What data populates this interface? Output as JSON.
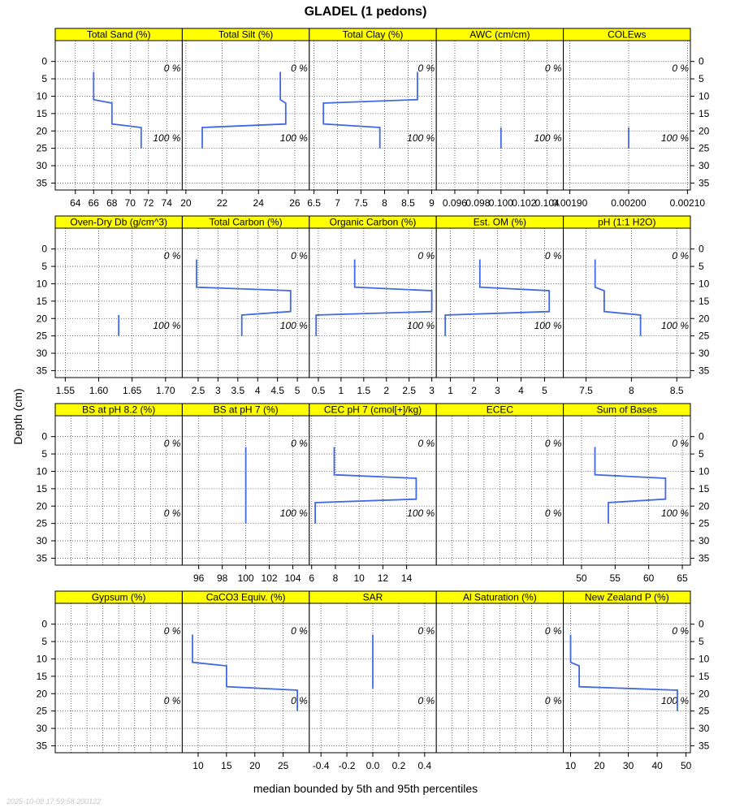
{
  "chart_data": {
    "type": "line",
    "title": "GLADEL (1 pedons)",
    "ylabel": "Depth (cm)",
    "xlabel": "median bounded by 5th and 95th percentiles",
    "timestamp": "2025-10-08 17:59:58.200122",
    "ylim": [
      37,
      -6
    ],
    "y_ticks": [
      0,
      5,
      10,
      15,
      20,
      25,
      30,
      35
    ],
    "grid": true,
    "strip_color": "#ffff00",
    "line_color": "#4169e1",
    "panels": [
      {
        "name": "Total Sand (%)",
        "xlim": [
          61.8,
          75.7
        ],
        "x_ticks": [
          64,
          66,
          68,
          70,
          72,
          74
        ],
        "x_axis": "bottom",
        "annotations": [
          {
            "text": "0 %",
            "depth": 2
          },
          {
            "text": "100 %",
            "depth": 22
          }
        ],
        "profile": [
          [
            66,
            3
          ],
          [
            66,
            11
          ],
          [
            68,
            12
          ],
          [
            68,
            18
          ],
          [
            71.2,
            19
          ],
          [
            71.2,
            25
          ]
        ]
      },
      {
        "name": "Total Silt (%)",
        "xlim": [
          19.8,
          26.8
        ],
        "x_ticks": [
          20,
          22,
          24,
          26
        ],
        "x_axis": "bottom",
        "annotations": [
          {
            "text": "0 %",
            "depth": 2
          },
          {
            "text": "100 %",
            "depth": 22
          }
        ],
        "profile": [
          [
            25.2,
            3
          ],
          [
            25.2,
            11
          ],
          [
            25.5,
            12
          ],
          [
            25.5,
            18
          ],
          [
            20.9,
            19
          ],
          [
            20.9,
            25
          ]
        ]
      },
      {
        "name": "Total Clay (%)",
        "xlim": [
          6.4,
          9.1
        ],
        "x_ticks": [
          6.5,
          7.0,
          7.5,
          8.0,
          8.5,
          9.0
        ],
        "x_axis": "bottom",
        "annotations": [
          {
            "text": "0 %",
            "depth": 2
          },
          {
            "text": "100 %",
            "depth": 22
          }
        ],
        "profile": [
          [
            8.7,
            3
          ],
          [
            8.7,
            11
          ],
          [
            6.7,
            12
          ],
          [
            6.7,
            18
          ],
          [
            7.9,
            19
          ],
          [
            7.9,
            25
          ]
        ]
      },
      {
        "name": "AWC (cm/cm)",
        "xlim": [
          0.0944,
          0.1054
        ],
        "x_ticks": [
          0.096,
          0.098,
          0.1,
          0.102,
          0.104
        ],
        "x_tick_labels": [
          "0.096",
          "0.098",
          "0.100",
          "0.102",
          "0.104"
        ],
        "x_axis": "bottom",
        "annotations": [
          {
            "text": "0 %",
            "depth": 2
          },
          {
            "text": "100 %",
            "depth": 22
          }
        ],
        "profile": [
          [
            0.1,
            19
          ],
          [
            0.1,
            25
          ]
        ]
      },
      {
        "name": "COLEws",
        "xlim": [
          0.001889,
          0.002105
        ],
        "x_ticks": [
          0.0019,
          0.002,
          0.0021
        ],
        "x_tick_labels": [
          "0.00190",
          "0.00200",
          "0.00210"
        ],
        "x_axis": "bottom",
        "annotations": [
          {
            "text": "0 %",
            "depth": 2
          },
          {
            "text": "100 %",
            "depth": 22
          }
        ],
        "profile": [
          [
            0.002,
            19
          ],
          [
            0.002,
            25
          ]
        ]
      },
      {
        "name": "Oven-Dry Db (g/cm^3)",
        "xlim": [
          1.535,
          1.725
        ],
        "x_ticks": [
          1.55,
          1.6,
          1.65,
          1.7
        ],
        "x_tick_labels": [
          "1.55",
          "1.60",
          "1.65",
          "1.70"
        ],
        "x_axis": "bottom",
        "annotations": [
          {
            "text": "0 %",
            "depth": 2
          },
          {
            "text": "100 %",
            "depth": 22
          }
        ],
        "profile": [
          [
            1.63,
            19
          ],
          [
            1.63,
            25
          ]
        ]
      },
      {
        "name": "Total Carbon (%)",
        "xlim": [
          2.1,
          5.3
        ],
        "x_ticks": [
          2.5,
          3.0,
          3.5,
          4.0,
          4.5,
          5.0
        ],
        "x_axis": "bottom",
        "annotations": [
          {
            "text": "0 %",
            "depth": 2
          },
          {
            "text": "100 %",
            "depth": 22
          }
        ],
        "profile": [
          [
            2.46,
            3
          ],
          [
            2.46,
            11
          ],
          [
            4.83,
            12
          ],
          [
            4.83,
            18
          ],
          [
            3.6,
            19
          ],
          [
            3.6,
            25
          ]
        ]
      },
      {
        "name": "Organic Carbon (%)",
        "xlim": [
          0.3,
          3.1
        ],
        "x_ticks": [
          0.5,
          1.0,
          1.5,
          2.0,
          2.5,
          3.0
        ],
        "x_axis": "bottom",
        "annotations": [
          {
            "text": "0 %",
            "depth": 2
          },
          {
            "text": "100 %",
            "depth": 22
          }
        ],
        "profile": [
          [
            1.3,
            3
          ],
          [
            1.3,
            11
          ],
          [
            3.0,
            12
          ],
          [
            3.0,
            18
          ],
          [
            0.45,
            19
          ],
          [
            0.45,
            25
          ]
        ]
      },
      {
        "name": "Est. OM (%)",
        "xlim": [
          0.4,
          5.8
        ],
        "x_ticks": [
          1,
          2,
          3,
          4,
          5
        ],
        "x_axis": "bottom",
        "annotations": [
          {
            "text": "0 %",
            "depth": 2
          },
          {
            "text": "100 %",
            "depth": 22
          }
        ],
        "profile": [
          [
            2.25,
            3
          ],
          [
            2.25,
            11
          ],
          [
            5.2,
            12
          ],
          [
            5.2,
            18
          ],
          [
            0.78,
            19
          ],
          [
            0.78,
            25
          ]
        ]
      },
      {
        "name": "pH (1:1 H2O)",
        "xlim": [
          7.25,
          8.65
        ],
        "x_ticks": [
          7.5,
          8.0,
          8.5
        ],
        "x_axis": "bottom",
        "annotations": [
          {
            "text": "0 %",
            "depth": 2
          },
          {
            "text": "100 %",
            "depth": 22
          }
        ],
        "profile": [
          [
            7.6,
            3
          ],
          [
            7.6,
            11
          ],
          [
            7.7,
            12
          ],
          [
            7.7,
            18
          ],
          [
            8.1,
            19
          ],
          [
            8.1,
            25
          ]
        ]
      },
      {
        "name": "BS at pH 8.2 (%)",
        "xlim": [
          0,
          1
        ],
        "x_ticks": [],
        "x_axis": "none",
        "annotations": [
          {
            "text": "0 %",
            "depth": 2
          },
          {
            "text": "0 %",
            "depth": 22
          }
        ],
        "profile": []
      },
      {
        "name": "BS at pH 7 (%)",
        "xlim": [
          94.6,
          105.4
        ],
        "x_ticks": [
          96,
          98,
          100,
          102,
          104
        ],
        "x_axis": "bottom",
        "annotations": [
          {
            "text": "0 %",
            "depth": 2
          },
          {
            "text": "100 %",
            "depth": 22
          }
        ],
        "profile": [
          [
            100,
            3
          ],
          [
            100,
            25
          ]
        ]
      },
      {
        "name": "CEC pH 7 (cmol[+]/kg)",
        "xlim": [
          5.8,
          16.5
        ],
        "x_ticks": [
          6,
          8,
          10,
          12,
          14
        ],
        "x_axis": "bottom",
        "annotations": [
          {
            "text": "0 %",
            "depth": 2
          },
          {
            "text": "100 %",
            "depth": 22
          }
        ],
        "profile": [
          [
            7.9,
            3
          ],
          [
            7.9,
            11
          ],
          [
            14.8,
            12
          ],
          [
            14.8,
            18
          ],
          [
            6.3,
            19
          ],
          [
            6.3,
            25
          ]
        ]
      },
      {
        "name": "ECEC",
        "xlim": [
          0,
          1
        ],
        "x_ticks": [],
        "x_axis": "none",
        "annotations": [
          {
            "text": "0 %",
            "depth": 2
          },
          {
            "text": "0 %",
            "depth": 22
          }
        ],
        "profile": []
      },
      {
        "name": "Sum of Bases",
        "xlim": [
          47.3,
          66.2
        ],
        "x_ticks": [
          50,
          55,
          60,
          65
        ],
        "x_axis": "bottom",
        "annotations": [
          {
            "text": "0 %",
            "depth": 2
          },
          {
            "text": "100 %",
            "depth": 22
          }
        ],
        "profile": [
          [
            52,
            3
          ],
          [
            52,
            11
          ],
          [
            62.5,
            12
          ],
          [
            62.5,
            18
          ],
          [
            54,
            19
          ],
          [
            54,
            25
          ]
        ]
      },
      {
        "name": "Gypsum (%)",
        "xlim": [
          0,
          1
        ],
        "x_ticks": [],
        "x_axis": "none",
        "annotations": [
          {
            "text": "0 %",
            "depth": 2
          },
          {
            "text": "0 %",
            "depth": 22
          }
        ],
        "profile": []
      },
      {
        "name": "CaCO3 Equiv. (%)",
        "xlim": [
          7.2,
          29.6
        ],
        "x_ticks": [
          10,
          15,
          20,
          25
        ],
        "x_axis": "bottom",
        "annotations": [
          {
            "text": "0 %",
            "depth": 2
          },
          {
            "text": "0 %",
            "depth": 22
          }
        ],
        "profile": [
          [
            9,
            3
          ],
          [
            9,
            11
          ],
          [
            15,
            12
          ],
          [
            15,
            18
          ],
          [
            27.5,
            19
          ],
          [
            27.5,
            25
          ]
        ]
      },
      {
        "name": "SAR",
        "xlim": [
          -0.49,
          0.49
        ],
        "x_ticks": [
          -0.4,
          -0.2,
          0,
          0.2,
          0.4
        ],
        "x_tick_labels": [
          "-0.4",
          "-0.2",
          "0.0",
          "0.2",
          "0.4"
        ],
        "x_axis": "bottom",
        "annotations": [
          {
            "text": "0 %",
            "depth": 2
          },
          {
            "text": "0 %",
            "depth": 22
          }
        ],
        "profile": [
          [
            0,
            3
          ],
          [
            0,
            18.5
          ]
        ]
      },
      {
        "name": "Al Saturation (%)",
        "xlim": [
          0,
          1
        ],
        "x_ticks": [],
        "x_axis": "none",
        "annotations": [
          {
            "text": "0 %",
            "depth": 2
          },
          {
            "text": "0 %",
            "depth": 22
          }
        ],
        "profile": []
      },
      {
        "name": "New Zealand P (%)",
        "xlim": [
          7.5,
          51.5
        ],
        "x_ticks": [
          10,
          20,
          30,
          40,
          50
        ],
        "x_axis": "bottom",
        "annotations": [
          {
            "text": "0 %",
            "depth": 2
          },
          {
            "text": "100 %",
            "depth": 22
          }
        ],
        "profile": [
          [
            10,
            3
          ],
          [
            10,
            11
          ],
          [
            13,
            12
          ],
          [
            13,
            18
          ],
          [
            47,
            19
          ],
          [
            47,
            25
          ]
        ]
      }
    ]
  }
}
